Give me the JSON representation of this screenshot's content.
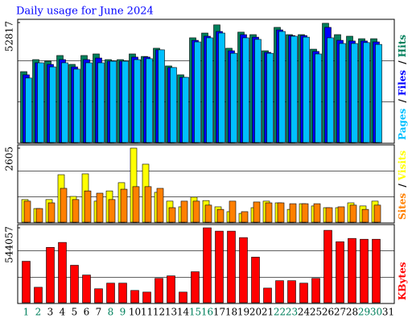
{
  "chart_data": [
    {
      "type": "bar",
      "title": "Daily usage for June 2024",
      "title_color": "#0000ff",
      "ylim": [
        0,
        52817
      ],
      "yticks": [
        52817
      ],
      "legend_separator": "/",
      "series": [
        {
          "name": "Hits",
          "color": "#00805c",
          "values": [
            31200,
            36500,
            35800,
            38300,
            34400,
            38300,
            39000,
            36500,
            36500,
            39000,
            37900,
            41500,
            33700,
            29800,
            46100,
            48200,
            51800,
            41500,
            48600,
            47500,
            40400,
            50700,
            47500,
            47500,
            41100,
            52500,
            47500,
            46800,
            45700,
            45700,
            null
          ]
        },
        {
          "name": "Files",
          "color": "#0000ff",
          "values": [
            29800,
            35100,
            34400,
            36500,
            33300,
            36500,
            37200,
            35800,
            35800,
            37600,
            37600,
            40800,
            33000,
            28700,
            45000,
            46800,
            48900,
            40400,
            47500,
            46400,
            39700,
            49600,
            47100,
            47100,
            40100,
            50700,
            45000,
            44700,
            44700,
            44300,
            null
          ]
        },
        {
          "name": "Pages",
          "color": "#00c0ff",
          "values": [
            28400,
            35100,
            33300,
            35100,
            32300,
            35100,
            35100,
            35800,
            35800,
            36500,
            36900,
            40800,
            33000,
            28700,
            44300,
            46100,
            48200,
            39300,
            46100,
            45400,
            39300,
            48900,
            46800,
            46400,
            39000,
            46100,
            43600,
            43600,
            44000,
            43200,
            null
          ]
        }
      ]
    },
    {
      "type": "bar",
      "ylim": [
        0,
        2605
      ],
      "yticks": [
        2605
      ],
      "legend_separator": "/",
      "series": [
        {
          "name": "Visits",
          "color": "#ffff00",
          "values": [
            796,
            480,
            796,
            1670,
            906,
            1700,
            740,
            1100,
            1390,
            2605,
            2040,
            1050,
            740,
            540,
            880,
            760,
            540,
            370,
            310,
            510,
            740,
            680,
            450,
            650,
            570,
            510,
            510,
            680,
            570,
            740,
            null
          ]
        },
        {
          "name": "Sites",
          "color": "#ff8000",
          "values": [
            740,
            480,
            680,
            1190,
            796,
            1100,
            1020,
            796,
            1160,
            1250,
            1250,
            1190,
            510,
            740,
            740,
            600,
            450,
            740,
            370,
            710,
            680,
            680,
            650,
            650,
            650,
            510,
            540,
            600,
            450,
            600,
            null
          ]
        }
      ]
    },
    {
      "type": "bar",
      "ylim": [
        0,
        544057
      ],
      "yticks": [
        544057
      ],
      "categories": [
        "1",
        "2",
        "3",
        "4",
        "5",
        "6",
        "7",
        "8",
        "9",
        "10",
        "11",
        "12",
        "13",
        "14",
        "15",
        "16",
        "17",
        "18",
        "19",
        "20",
        "21",
        "22",
        "23",
        "24",
        "25",
        "26",
        "27",
        "28",
        "29",
        "30",
        "31"
      ],
      "category_colors": [
        "#00805c",
        "#00805c",
        "#000000",
        "#000000",
        "#000000",
        "#000000",
        "#000000",
        "#00805c",
        "#00805c",
        "#000000",
        "#000000",
        "#000000",
        "#000000",
        "#000000",
        "#00805c",
        "#00805c",
        "#000000",
        "#000000",
        "#000000",
        "#000000",
        "#000000",
        "#00805c",
        "#00805c",
        "#000000",
        "#000000",
        "#000000",
        "#000000",
        "#000000",
        "#00805c",
        "#00805c",
        "#000000"
      ],
      "series": [
        {
          "name": "KBytes",
          "color": "#ff0000",
          "values": [
            301000,
            112000,
            402000,
            438000,
            272000,
            201000,
            101000,
            142000,
            142000,
            89000,
            77000,
            177000,
            195000,
            77000,
            225000,
            544057,
            520000,
            520000,
            473000,
            331000,
            106000,
            160000,
            160000,
            142000,
            177000,
            526000,
            443000,
            467000,
            461000,
            461000,
            null
          ]
        }
      ]
    }
  ]
}
